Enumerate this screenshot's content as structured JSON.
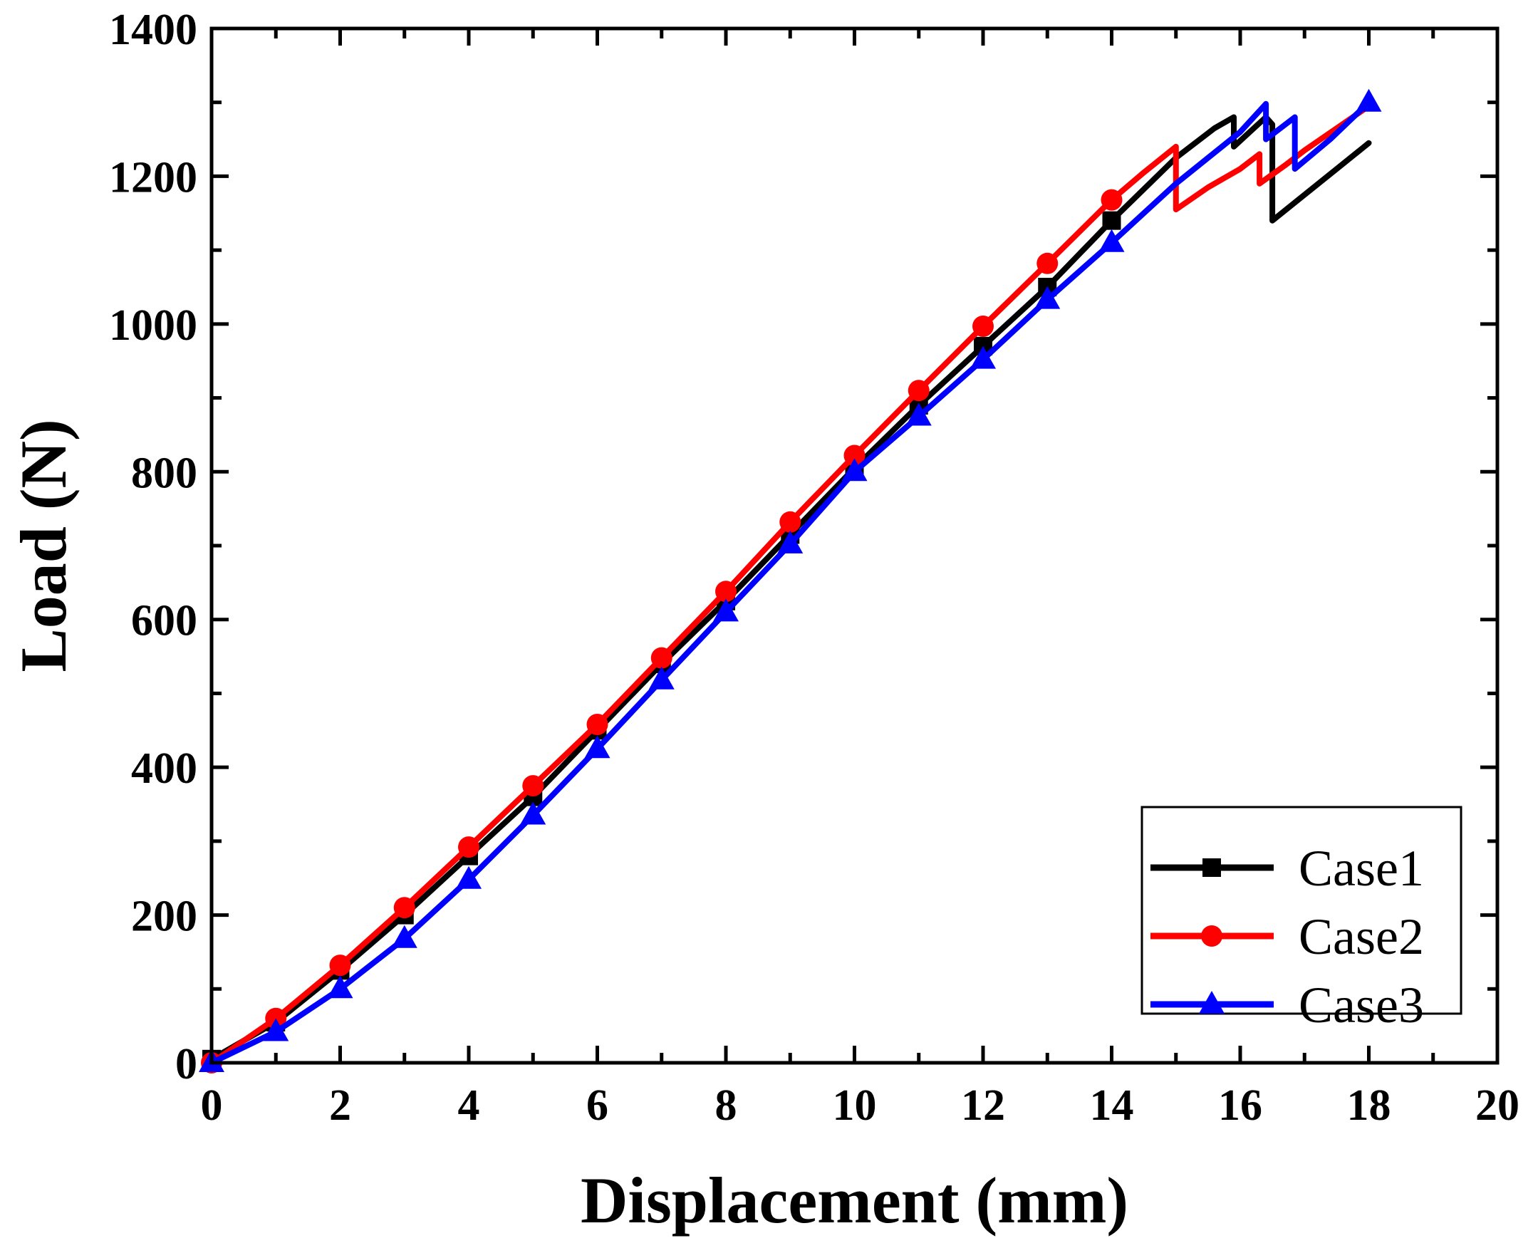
{
  "chart_data": {
    "type": "line",
    "title": "",
    "xlabel": "Displacement (mm)",
    "ylabel": "Load (N)",
    "xlim": [
      0,
      20
    ],
    "ylim": [
      0,
      1400
    ],
    "xticks": [
      0,
      2,
      4,
      6,
      8,
      10,
      12,
      14,
      16,
      18,
      20
    ],
    "yticks": [
      0,
      200,
      400,
      600,
      800,
      1000,
      1200,
      1400
    ],
    "grid": false,
    "legend_position": "bottom-right",
    "series": [
      {
        "name": "Case1",
        "color": "#000000",
        "marker": "square",
        "x": [
          0,
          1,
          2,
          3,
          4,
          5,
          6,
          7,
          8,
          9,
          10,
          11,
          12,
          13,
          14,
          15,
          15.6,
          15.9,
          15.9,
          16.15,
          16.4,
          16.5,
          16.5,
          17.0,
          17.5,
          18.0
        ],
        "y": [
          5,
          55,
          125,
          200,
          280,
          360,
          450,
          540,
          625,
          715,
          805,
          890,
          970,
          1050,
          1140,
          1225,
          1265,
          1280,
          1240,
          1260,
          1280,
          1270,
          1140,
          1175,
          1210,
          1245
        ],
        "marker_x": [
          0,
          1,
          2,
          3,
          4,
          5,
          6,
          7,
          8,
          9,
          10,
          11,
          12,
          13,
          14
        ],
        "marker_y": [
          5,
          55,
          125,
          200,
          280,
          360,
          450,
          540,
          625,
          715,
          805,
          890,
          970,
          1050,
          1140
        ]
      },
      {
        "name": "Case2",
        "color": "#ff0000",
        "marker": "circle",
        "x": [
          0,
          1,
          2,
          3,
          4,
          5,
          6,
          7,
          8,
          9,
          10,
          11,
          12,
          13,
          14,
          14.5,
          15.0,
          15.0,
          15.5,
          16.0,
          16.3,
          16.3,
          16.7,
          17.0,
          17.5,
          18.0
        ],
        "y": [
          0,
          60,
          132,
          210,
          292,
          375,
          458,
          548,
          638,
          732,
          822,
          910,
          997,
          1082,
          1168,
          1205,
          1240,
          1155,
          1185,
          1210,
          1230,
          1190,
          1215,
          1235,
          1265,
          1295
        ],
        "marker_x": [
          0,
          1,
          2,
          3,
          4,
          5,
          6,
          7,
          8,
          9,
          10,
          11,
          12,
          13,
          14
        ],
        "marker_y": [
          0,
          60,
          132,
          210,
          292,
          375,
          458,
          548,
          638,
          732,
          822,
          910,
          997,
          1082,
          1168
        ]
      },
      {
        "name": "Case3",
        "color": "#0000ff",
        "marker": "triangle",
        "x": [
          0,
          1,
          2,
          3,
          4,
          5,
          6,
          7,
          8,
          9,
          10,
          11,
          12,
          13,
          14,
          14.5,
          15.0,
          15.5,
          16.0,
          16.4,
          16.4,
          16.85,
          16.85,
          17.4,
          18.0
        ],
        "y": [
          0,
          42,
          100,
          168,
          248,
          335,
          425,
          518,
          610,
          702,
          800,
          875,
          952,
          1033,
          1110,
          1150,
          1190,
          1225,
          1260,
          1298,
          1250,
          1280,
          1210,
          1250,
          1300
        ],
        "marker_x": [
          0,
          1,
          2,
          3,
          4,
          5,
          6,
          7,
          8,
          9,
          10,
          11,
          12,
          13,
          14,
          18
        ],
        "marker_y": [
          0,
          42,
          100,
          168,
          248,
          335,
          425,
          518,
          610,
          702,
          800,
          875,
          952,
          1033,
          1110,
          1300
        ]
      }
    ]
  }
}
